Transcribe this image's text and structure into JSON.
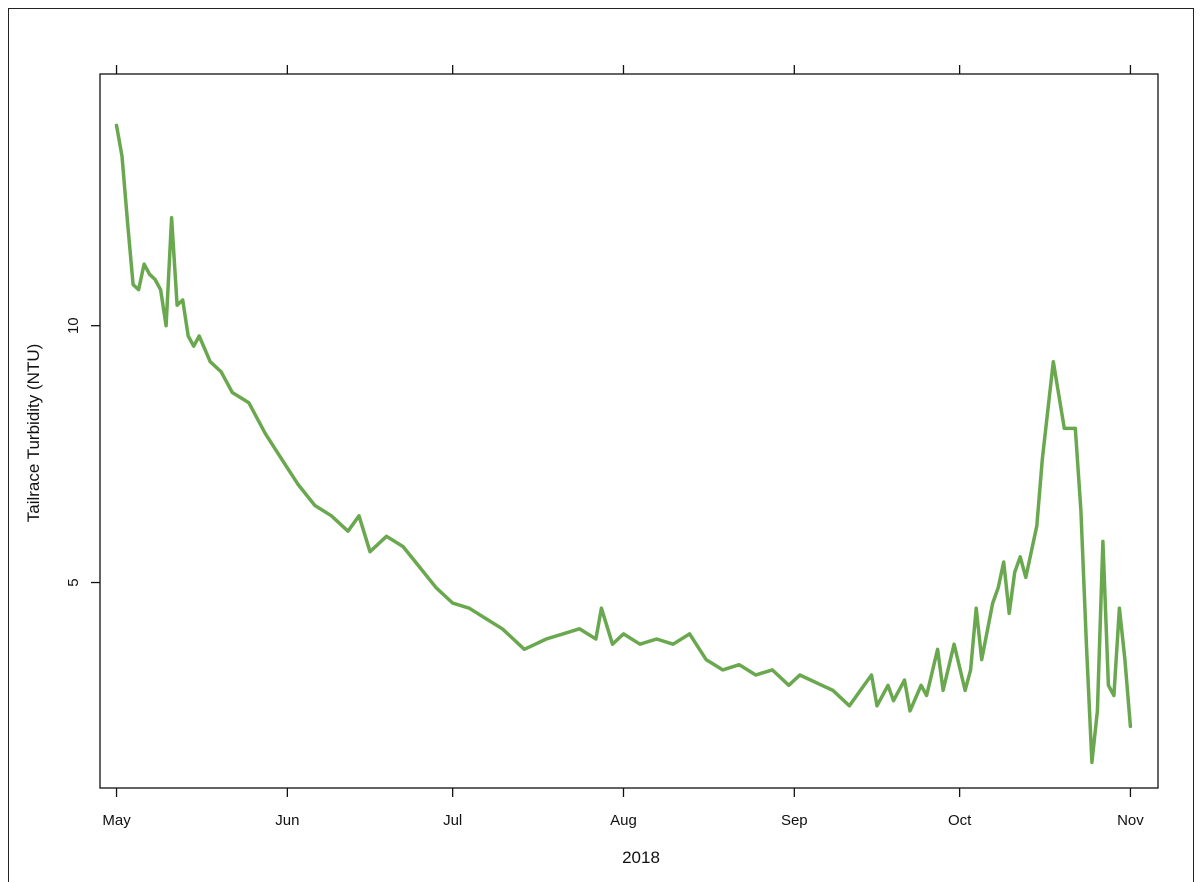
{
  "chart_data": {
    "type": "line",
    "xlabel": "2018",
    "ylabel": "Tailrace Turbidity (NTU)",
    "x_ticks": [
      "May",
      "Jun",
      "Jul",
      "Aug",
      "Sep",
      "Oct",
      "Nov"
    ],
    "y_ticks": [
      5,
      10
    ],
    "xlim": [
      "2018-04-28",
      "2018-11-06"
    ],
    "ylim": [
      1.0,
      14.9
    ],
    "line_color": "#6aa84f",
    "grid": false,
    "legend": "none",
    "series": [
      {
        "x": [
          "2018-05-01",
          "2018-05-02",
          "2018-05-03",
          "2018-05-04",
          "2018-05-05",
          "2018-05-06",
          "2018-05-07",
          "2018-05-08",
          "2018-05-09",
          "2018-05-10",
          "2018-05-11",
          "2018-05-12",
          "2018-05-13",
          "2018-05-14",
          "2018-05-15",
          "2018-05-16",
          "2018-05-18",
          "2018-05-20",
          "2018-05-22",
          "2018-05-25",
          "2018-05-28",
          "2018-05-31",
          "2018-06-03",
          "2018-06-06",
          "2018-06-09",
          "2018-06-12",
          "2018-06-14",
          "2018-06-16",
          "2018-06-19",
          "2018-06-22",
          "2018-06-25",
          "2018-06-28",
          "2018-07-01",
          "2018-07-04",
          "2018-07-07",
          "2018-07-10",
          "2018-07-12",
          "2018-07-13",
          "2018-07-14",
          "2018-07-16",
          "2018-07-18",
          "2018-07-21",
          "2018-07-24",
          "2018-07-27",
          "2018-07-28",
          "2018-07-30",
          "2018-08-01",
          "2018-08-04",
          "2018-08-07",
          "2018-08-10",
          "2018-08-13",
          "2018-08-16",
          "2018-08-19",
          "2018-08-22",
          "2018-08-25",
          "2018-08-28",
          "2018-08-31",
          "2018-09-02",
          "2018-09-04",
          "2018-09-06",
          "2018-09-08",
          "2018-09-10",
          "2018-09-11",
          "2018-09-13",
          "2018-09-15",
          "2018-09-16",
          "2018-09-18",
          "2018-09-19",
          "2018-09-21",
          "2018-09-22",
          "2018-09-24",
          "2018-09-25",
          "2018-09-27",
          "2018-09-28",
          "2018-09-30",
          "2018-10-02",
          "2018-10-03",
          "2018-10-04",
          "2018-10-05",
          "2018-10-07",
          "2018-10-08",
          "2018-10-09",
          "2018-10-10",
          "2018-10-11",
          "2018-10-12",
          "2018-10-13",
          "2018-10-15",
          "2018-10-16",
          "2018-10-18",
          "2018-10-20",
          "2018-10-22",
          "2018-10-23",
          "2018-10-24",
          "2018-10-25",
          "2018-10-26",
          "2018-10-27",
          "2018-10-28",
          "2018-10-29",
          "2018-10-30",
          "2018-10-31",
          "2018-11-01"
        ],
        "y": [
          13.9,
          13.3,
          12.0,
          10.8,
          10.7,
          11.2,
          11.0,
          10.9,
          10.7,
          10.0,
          12.1,
          10.4,
          10.5,
          9.8,
          9.6,
          9.8,
          9.3,
          9.1,
          8.7,
          8.5,
          7.9,
          7.4,
          6.9,
          6.5,
          6.3,
          6.0,
          6.3,
          5.6,
          5.9,
          5.7,
          5.3,
          4.9,
          4.6,
          4.5,
          4.3,
          4.1,
          3.9,
          3.8,
          3.7,
          3.8,
          3.9,
          4.0,
          4.1,
          3.9,
          4.5,
          3.8,
          4.0,
          3.8,
          3.9,
          3.8,
          4.0,
          3.5,
          3.3,
          3.4,
          3.2,
          3.3,
          3.0,
          3.2,
          3.1,
          3.0,
          2.9,
          2.7,
          2.6,
          2.9,
          3.2,
          2.6,
          3.0,
          2.7,
          3.1,
          2.5,
          3.0,
          2.8,
          3.7,
          2.9,
          3.8,
          2.9,
          3.3,
          4.5,
          3.5,
          4.6,
          4.9,
          5.4,
          4.4,
          5.2,
          5.5,
          5.1,
          6.1,
          7.4,
          9.3,
          8.0,
          8.0,
          6.4,
          3.8,
          1.5,
          2.5,
          5.8,
          3.0,
          2.8,
          4.5,
          3.5,
          2.2
        ]
      }
    ]
  }
}
